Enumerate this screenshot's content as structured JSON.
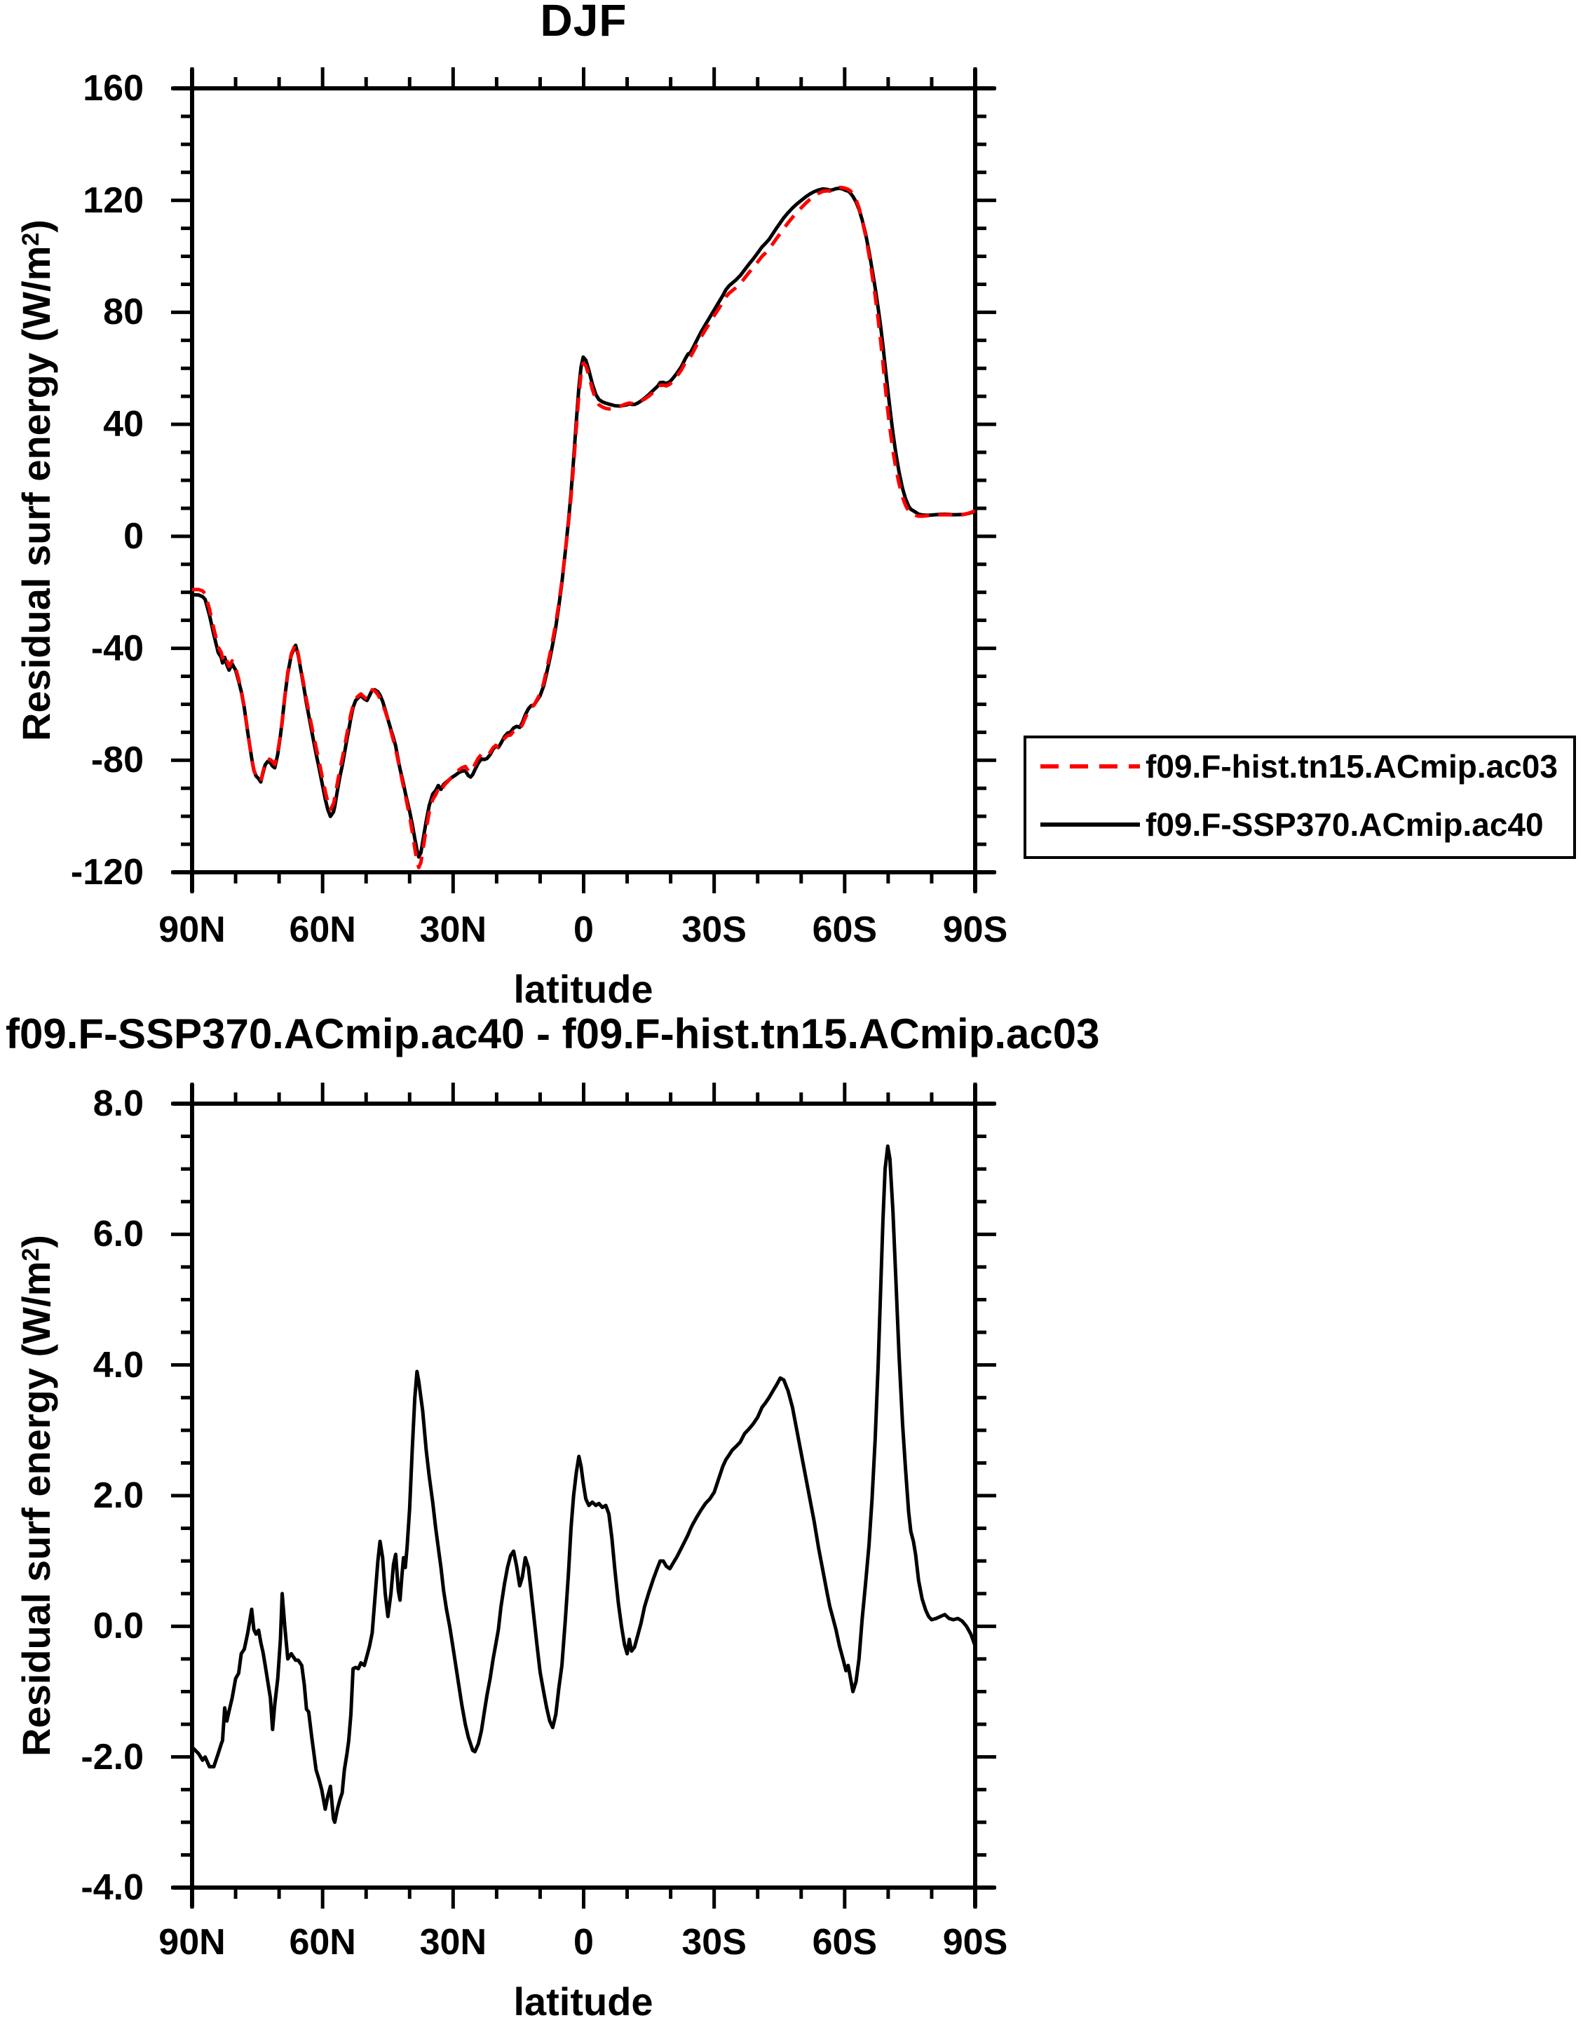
{
  "figure": {
    "background": "#ffffff",
    "line_colors": {
      "hist": "#ff0000",
      "ssp": "#000000",
      "difference": "#000000"
    }
  },
  "top_chart": {
    "title": "DJF",
    "y_tick_labels": [
      "160",
      "120",
      "80",
      "40",
      "0",
      "-40",
      "-80",
      "-120"
    ],
    "x_tick_labels": [
      "90N",
      "60N",
      "30N",
      "0",
      "30S",
      "60S",
      "90S"
    ]
  },
  "bottom_chart": {
    "title": "f09.F-SSP370.ACmip.ac40 - f09.F-hist.tn15.ACmip.ac03",
    "y_tick_labels": [
      "8.0",
      "6.0",
      "4.0",
      "2.0",
      "0.0",
      "-2.0",
      "-4.0"
    ],
    "x_tick_labels": [
      "90N",
      "60N",
      "30N",
      "0",
      "30S",
      "60S",
      "90S"
    ]
  },
  "axis_labels": {
    "x": "latitude",
    "y_prefix": "Residual surf energy (W/m",
    "y_sup": "2",
    "y_suffix": ")"
  },
  "legend": {
    "entries": [
      {
        "label": "f09.F-hist.tn15.ACmip.ac03",
        "color": "#ff0000",
        "style": "dashed"
      },
      {
        "label": "f09.F-SSP370.ACmip.ac40",
        "color": "#000000",
        "style": "solid"
      }
    ]
  },
  "chart_data": {
    "x_deg_north": [
      90,
      88.5,
      87.6,
      87,
      86,
      85,
      84,
      83.3,
      83,
      82.5,
      82,
      81.5,
      80.8,
      80,
      79.3,
      78.7,
      78,
      77.2,
      76.3,
      75.8,
      75.3,
      74.7,
      74.2,
      73.7,
      73.2,
      72.6,
      72,
      71.5,
      71,
      70.3,
      69.7,
      69.3,
      68.7,
      68,
      67.2,
      66.2,
      65.6,
      64.8,
      64.2,
      63.7,
      63.2,
      62.5,
      61.5,
      60.8,
      60.2,
      59.4,
      58.8,
      58.2,
      57.5,
      57.2,
      56.6,
      56,
      55.5,
      55,
      54.4,
      54,
      53.5,
      53,
      52.4,
      51.8,
      51.2,
      50.4,
      49.8,
      49.2,
      48.6,
      48,
      47.3,
      46.8,
      46.2,
      45.6,
      45,
      44.3,
      43.7,
      43.2,
      42.6,
      42.2,
      41.8,
      41.4,
      41,
      40.6,
      40,
      39.4,
      38.8,
      38.3,
      37.9,
      37.4,
      37,
      36.2,
      35.5,
      34.7,
      34,
      33.4,
      32.8,
      32.2,
      31.5,
      30.8,
      30.2,
      29.5,
      28.7,
      28,
      27.2,
      26.5,
      26,
      25.5,
      25,
      24.2,
      23.5,
      22.8,
      22.2,
      21.5,
      20.8,
      20.2,
      19.6,
      19,
      18.2,
      17.5,
      16.8,
      16.1,
      15.4,
      14.7,
      14.1,
      13.4,
      12.7,
      12.1,
      11.4,
      10.7,
      10,
      9.2,
      8.5,
      7.8,
      7.1,
      6.4,
      5.7,
      5,
      4.2,
      3.5,
      2.9,
      2.3,
      1.7,
      1.1,
      0.6,
      0.1,
      -0.5,
      -1.2,
      -2,
      -2.8,
      -3.5,
      -4.3,
      -5.1,
      -5.8,
      -6.5,
      -7.2,
      -8,
      -8.7,
      -9.4,
      -10,
      -10.5,
      -11,
      -11.7,
      -12.4,
      -13.2,
      -14,
      -15,
      -16,
      -17,
      -17.6,
      -18.3,
      -19,
      -19.8,
      -20.6,
      -21.5,
      -22.5,
      -23.4,
      -24,
      -24.5,
      -25,
      -26,
      -27,
      -28,
      -29,
      -30,
      -31,
      -32,
      -32.7,
      -33.4,
      -34.2,
      -35,
      -36,
      -37,
      -38,
      -39,
      -40,
      -41,
      -41.8,
      -42.6,
      -43.5,
      -44.4,
      -45.2,
      -46,
      -47,
      -48,
      -49,
      -50,
      -51,
      -52,
      -53,
      -54,
      -55,
      -56,
      -56.6,
      -57.2,
      -58,
      -58.8,
      -59.6,
      -60.3,
      -60.8,
      -61.3,
      -61.9,
      -62.6,
      -63.3,
      -64,
      -64.8,
      -65.6,
      -66.3,
      -67,
      -67.7,
      -68.3,
      -68.8,
      -69.3,
      -69.9,
      -70.4,
      -71.1,
      -71.8,
      -72.5,
      -73.3,
      -74,
      -74.7,
      -75.2,
      -75.8,
      -76.3,
      -77,
      -77.8,
      -78.6,
      -79.3,
      -80,
      -81,
      -82,
      -83,
      -84,
      -85,
      -86,
      -87,
      -88,
      -89,
      -90
    ],
    "charts": [
      {
        "type": "line",
        "title": "DJF",
        "xlabel": "latitude",
        "ylabel": "Residual surf energy (W/m2)",
        "ylim": [
          -120,
          160
        ],
        "y_major_tick_step": 40,
        "y_minor_tick_step": 10,
        "x_major_ticks_deg": [
          90,
          60,
          30,
          0,
          -30,
          -60,
          -90
        ],
        "x_minor_tick_step_deg": 10,
        "grid": false,
        "legend_position": "outside-right-bottom",
        "series": [
          {
            "name": "f09.F-hist.tn15.ACmip.ac03",
            "color": "#ff0000",
            "line_style": "dashed",
            "values": [
              -19,
              -19,
              -19.5,
              -20.5,
              -26,
              -33,
              -39.5,
              -41.5,
              -43.5,
              -42,
              -44.5,
              -46.5,
              -44.5,
              -47,
              -51,
              -55,
              -61,
              -70,
              -79.5,
              -83.5,
              -85.5,
              -86.5,
              -87.5,
              -84,
              -81,
              -79.5,
              -79.8,
              -80.5,
              -81.5,
              -77,
              -71,
              -66.5,
              -57.5,
              -48.5,
              -42,
              -38.4,
              -42,
              -49,
              -54,
              -58.5,
              -62.5,
              -68,
              -75.5,
              -80.5,
              -85,
              -91,
              -95,
              -97.6,
              -95.5,
              -93.5,
              -88,
              -83,
              -79.5,
              -75.5,
              -70.5,
              -67.5,
              -63.5,
              -60.5,
              -58,
              -57,
              -56.3,
              -57.5,
              -58.2,
              -56.5,
              -54.8,
              -55.2,
              -56.5,
              -58,
              -60,
              -62.5,
              -65.5,
              -69.5,
              -73,
              -76,
              -80.5,
              -83.5,
              -86.5,
              -89.5,
              -92.5,
              -95.5,
              -100,
              -105.5,
              -111.5,
              -116,
              -118.3,
              -116.5,
              -112.5,
              -104.5,
              -98.5,
              -94,
              -92.3,
              -90.2,
              -91.3,
              -89.2,
              -88,
              -86.8,
              -85.8,
              -84.8,
              -83.5,
              -82.7,
              -82.2,
              -83.8,
              -84.2,
              -83.2,
              -81.5,
              -79.2,
              -77.9,
              -78.4,
              -78.3,
              -77.2,
              -75.5,
              -74.7,
              -75.4,
              -74.2,
              -72.2,
              -71.2,
              -71,
              -69.6,
              -68.8,
              -68.9,
              -67.3,
              -64.8,
              -62.5,
              -61.1,
              -60.3,
              -58.3,
              -56.2,
              -52.5,
              -47.5,
              -42.5,
              -37,
              -31,
              -24,
              -16,
              -5.5,
              4.5,
              14,
              25.5,
              38.5,
              50.5,
              58,
              61.8,
              61,
              57.5,
              52.5,
              48.8,
              47,
              46.2,
              45.7,
              45.5,
              45.6,
              45.8,
              46.2,
              46.6,
              47.1,
              47.4,
              47.6,
              47.5,
              47.4,
              47.7,
              48.3,
              49,
              50.1,
              51.4,
              52.7,
              53.9,
              54,
              53.7,
              54.3,
              55.6,
              57.3,
              59.5,
              62.2,
              63.7,
              64,
              65.3,
              68.3,
              71.2,
              73.8,
              76.3,
              78.8,
              81.2,
              83.6,
              85.5,
              86.8,
              87.8,
              88.8,
              90.3,
              92.2,
              94.2,
              96,
              98,
              100,
              101.2,
              102.5,
              104.5,
              106.5,
              108.2,
              110,
              112,
              113.9,
              115.7,
              117.3,
              118.9,
              120.3,
              121.5,
              122.5,
              123.2,
              123.4,
              123.3,
              123.6,
              124.2,
              124.6,
              124.5,
              124.2,
              123.9,
              123.4,
              122.4,
              120.3,
              117.3,
              113,
              107.5,
              100.5,
              93.5,
              86,
              77.5,
              69.5,
              62,
              54,
              45,
              38.5,
              30.5,
              24,
              18.8,
              14,
              11,
              9,
              8.2,
              7.8,
              7.5,
              7.2,
              7.2,
              7.3,
              7.4,
              7.5,
              7.6,
              7.7,
              7.7,
              7.7,
              7.6,
              7.6,
              7.7,
              8,
              8.5,
              9.2
            ]
          },
          {
            "name": "f09.F-SSP370.ACmip.ac40",
            "color": "#000000",
            "line_style": "solid",
            "derived": "hist_values_plus_difference_values"
          }
        ]
      },
      {
        "type": "line",
        "title": "f09.F-SSP370.ACmip.ac40 - f09.F-hist.tn15.ACmip.ac03",
        "xlabel": "latitude",
        "ylabel": "Residual surf energy (W/m2)",
        "ylim": [
          -4,
          8
        ],
        "y_major_tick_step": 2,
        "y_minor_tick_step": 0.5,
        "x_major_ticks_deg": [
          90,
          60,
          30,
          0,
          -30,
          -60,
          -90
        ],
        "x_minor_tick_step_deg": 10,
        "grid": false,
        "series": [
          {
            "name": "difference",
            "color": "#000000",
            "line_style": "solid",
            "values": [
              -1.85,
              -1.95,
              -2.05,
              -2,
              -2.15,
              -2.15,
              -1.95,
              -1.8,
              -1.75,
              -1.25,
              -1.45,
              -1.3,
              -1.1,
              -0.8,
              -0.72,
              -0.42,
              -0.35,
              -0.1,
              0.26,
              -0.05,
              -0.12,
              -0.06,
              -0.25,
              -0.4,
              -0.6,
              -0.85,
              -1.1,
              -1.58,
              -1.2,
              -0.8,
              -0.2,
              0.5,
              0,
              -0.5,
              -0.42,
              -0.52,
              -0.52,
              -0.6,
              -0.9,
              -1.27,
              -1.31,
              -1.7,
              -2.2,
              -2.35,
              -2.5,
              -2.8,
              -2.6,
              -2.45,
              -2.95,
              -3,
              -2.8,
              -2.65,
              -2.55,
              -2.2,
              -1.95,
              -1.75,
              -1.35,
              -0.65,
              -0.63,
              -0.65,
              -0.56,
              -0.6,
              -0.45,
              -0.3,
              -0.1,
              0.4,
              1,
              1.3,
              1.05,
              0.5,
              0.15,
              0.5,
              0.95,
              1.1,
              0.55,
              0.4,
              0.75,
              1.05,
              0.9,
              1.2,
              1.8,
              2.7,
              3.5,
              3.9,
              3.75,
              3.5,
              3.3,
              2.7,
              2.3,
              1.9,
              1.5,
              1.2,
              0.9,
              0.55,
              0.25,
              0,
              -0.25,
              -0.55,
              -0.9,
              -1.2,
              -1.5,
              -1.7,
              -1.8,
              -1.9,
              -1.92,
              -1.8,
              -1.6,
              -1.3,
              -1.05,
              -0.8,
              -0.5,
              -0.28,
              -0.05,
              0.3,
              0.65,
              0.9,
              1.08,
              1.15,
              0.92,
              0.62,
              0.75,
              1.05,
              0.9,
              0.55,
              0.12,
              -0.3,
              -0.7,
              -1,
              -1.25,
              -1.45,
              -1.55,
              -1.35,
              -0.95,
              -0.6,
              0.1,
              0.8,
              1.5,
              2,
              2.35,
              2.6,
              2.45,
              2.2,
              1.95,
              1.85,
              1.9,
              1.85,
              1.88,
              1.82,
              1.85,
              1.72,
              1.35,
              0.85,
              0.35,
              0,
              -0.28,
              -0.42,
              -0.2,
              -0.38,
              -0.32,
              -0.15,
              0.05,
              0.3,
              0.52,
              0.72,
              0.9,
              1,
              1,
              0.92,
              0.88,
              0.97,
              1.07,
              1.2,
              1.32,
              1.4,
              1.48,
              1.55,
              1.67,
              1.78,
              1.88,
              1.95,
              2.05,
              2.25,
              2.45,
              2.55,
              2.62,
              2.7,
              2.75,
              2.82,
              2.95,
              3.02,
              3.1,
              3.2,
              3.35,
              3.42,
              3.5,
              3.6,
              3.7,
              3.8,
              3.77,
              3.6,
              3.35,
              3,
              2.65,
              2.3,
              1.95,
              1.6,
              1.2,
              0.85,
              0.5,
              0.3,
              0.15,
              -0.05,
              -0.3,
              -0.5,
              -0.68,
              -0.6,
              -0.78,
              -1,
              -0.85,
              -0.5,
              0.1,
              0.65,
              1.25,
              1.95,
              2.85,
              4,
              5.2,
              6.2,
              7,
              7.35,
              7.15,
              6.35,
              5.25,
              4.15,
              3.1,
              2.4,
              1.75,
              1.45,
              1.3,
              1.1,
              0.7,
              0.42,
              0.25,
              0.15,
              0.1,
              0.12,
              0.15,
              0.18,
              0.12,
              0.1,
              0.12,
              0.08,
              0,
              -0.12,
              -0.3
            ]
          }
        ]
      }
    ]
  }
}
